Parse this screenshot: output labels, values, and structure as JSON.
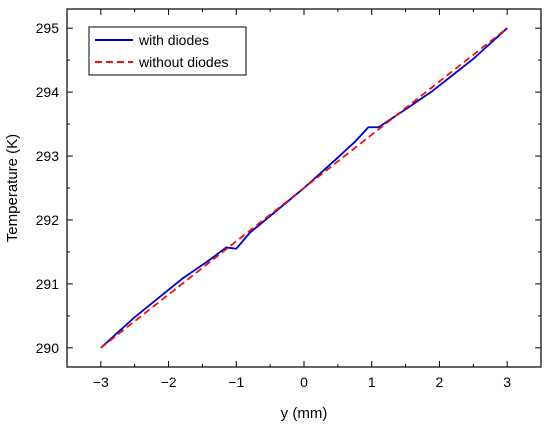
{
  "chart_data": {
    "type": "line",
    "xlabel": "y (mm)",
    "ylabel": "Temperature (K)",
    "xlim": [
      -3.5,
      3.5
    ],
    "ylim": [
      289.7,
      295.3
    ],
    "xticks": [
      -3,
      -2,
      -1,
      0,
      1,
      2,
      3
    ],
    "xtick_labels": [
      "−3",
      "−2",
      "−1",
      "0",
      "1",
      "2",
      "3"
    ],
    "yticks": [
      290,
      291,
      292,
      293,
      294,
      295
    ],
    "ytick_labels": [
      "290",
      "291",
      "292",
      "293",
      "294",
      "295"
    ],
    "grid": false,
    "legend_position": "top-left",
    "series": [
      {
        "name": "with diodes",
        "color": "#0000cc",
        "style": "solid",
        "x": [
          -3.0,
          -2.5,
          -1.8,
          -1.4,
          -1.15,
          -1.0,
          -0.8,
          -0.4,
          0.0,
          0.4,
          0.75,
          0.95,
          1.1,
          1.5,
          1.9,
          2.5,
          3.0
        ],
        "y": [
          290.0,
          290.48,
          291.08,
          291.37,
          291.57,
          291.55,
          291.8,
          292.15,
          292.5,
          292.88,
          293.22,
          293.45,
          293.45,
          293.73,
          294.02,
          294.52,
          295.0
        ]
      },
      {
        "name": "without diodes",
        "color": "#ee1111",
        "style": "dashed",
        "x": [
          -3.0,
          3.0
        ],
        "y": [
          290.0,
          295.0
        ]
      }
    ]
  }
}
